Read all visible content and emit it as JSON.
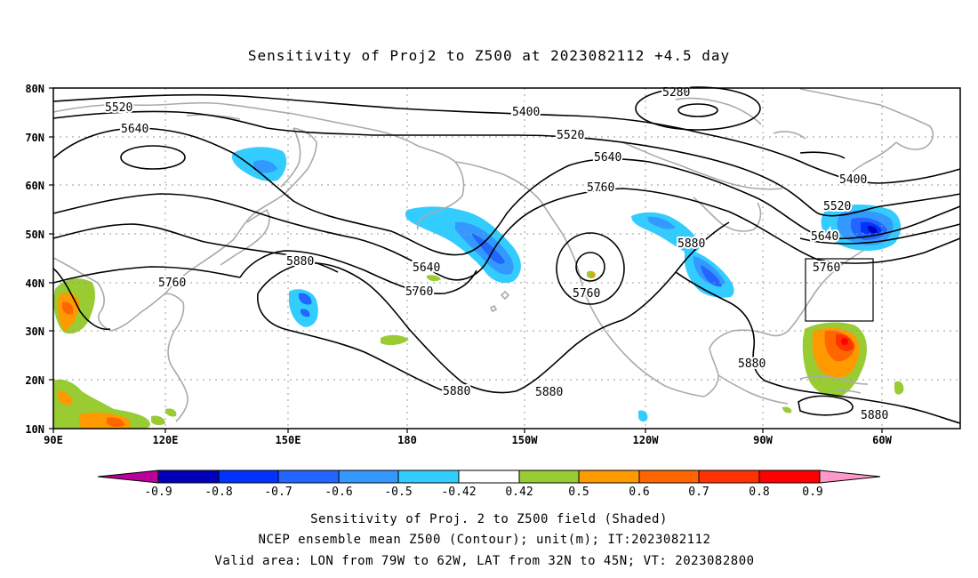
{
  "title": "Sensitivity of Proj2 to Z500 at 2023082112 +4.5 day",
  "lat_labels": [
    "80N",
    "70N",
    "60N",
    "50N",
    "40N",
    "30N",
    "20N",
    "10N"
  ],
  "lon_labels": [
    "90E",
    "120E",
    "150E",
    "180",
    "150W",
    "120W",
    "90W",
    "60W"
  ],
  "contour_labels": [
    "5280",
    "5400",
    "5520",
    "5520",
    "5640",
    "5640",
    "5640",
    "5640",
    "5760",
    "5760",
    "5760",
    "5760",
    "5760",
    "5880",
    "5880",
    "5880",
    "5880",
    "5880",
    "5880",
    "5400",
    "5520"
  ],
  "colorbar": {
    "tick_labels": [
      "-0.9",
      "-0.8",
      "-0.7",
      "-0.6",
      "-0.5",
      "-0.42",
      "0.42",
      "0.5",
      "0.6",
      "0.7",
      "0.8",
      "0.9"
    ],
    "colors": [
      "#bb0099",
      "#0000bb",
      "#0033ff",
      "#2266ff",
      "#3399ff",
      "#33ccff",
      "#ffffff",
      "#99cc33",
      "#ff9900",
      "#ff6600",
      "#ff3300",
      "#ff0000",
      "#ff99cc"
    ]
  },
  "caption": {
    "line1": "Sensitivity of Proj. 2 to Z500 field (Shaded)",
    "line2": "NCEP ensemble mean Z500 (Contour); unit(m); IT:2023082112",
    "line3": "Valid area: LON from 79W to 62W, LAT from 32N to 45N; VT: 2023082800"
  }
}
